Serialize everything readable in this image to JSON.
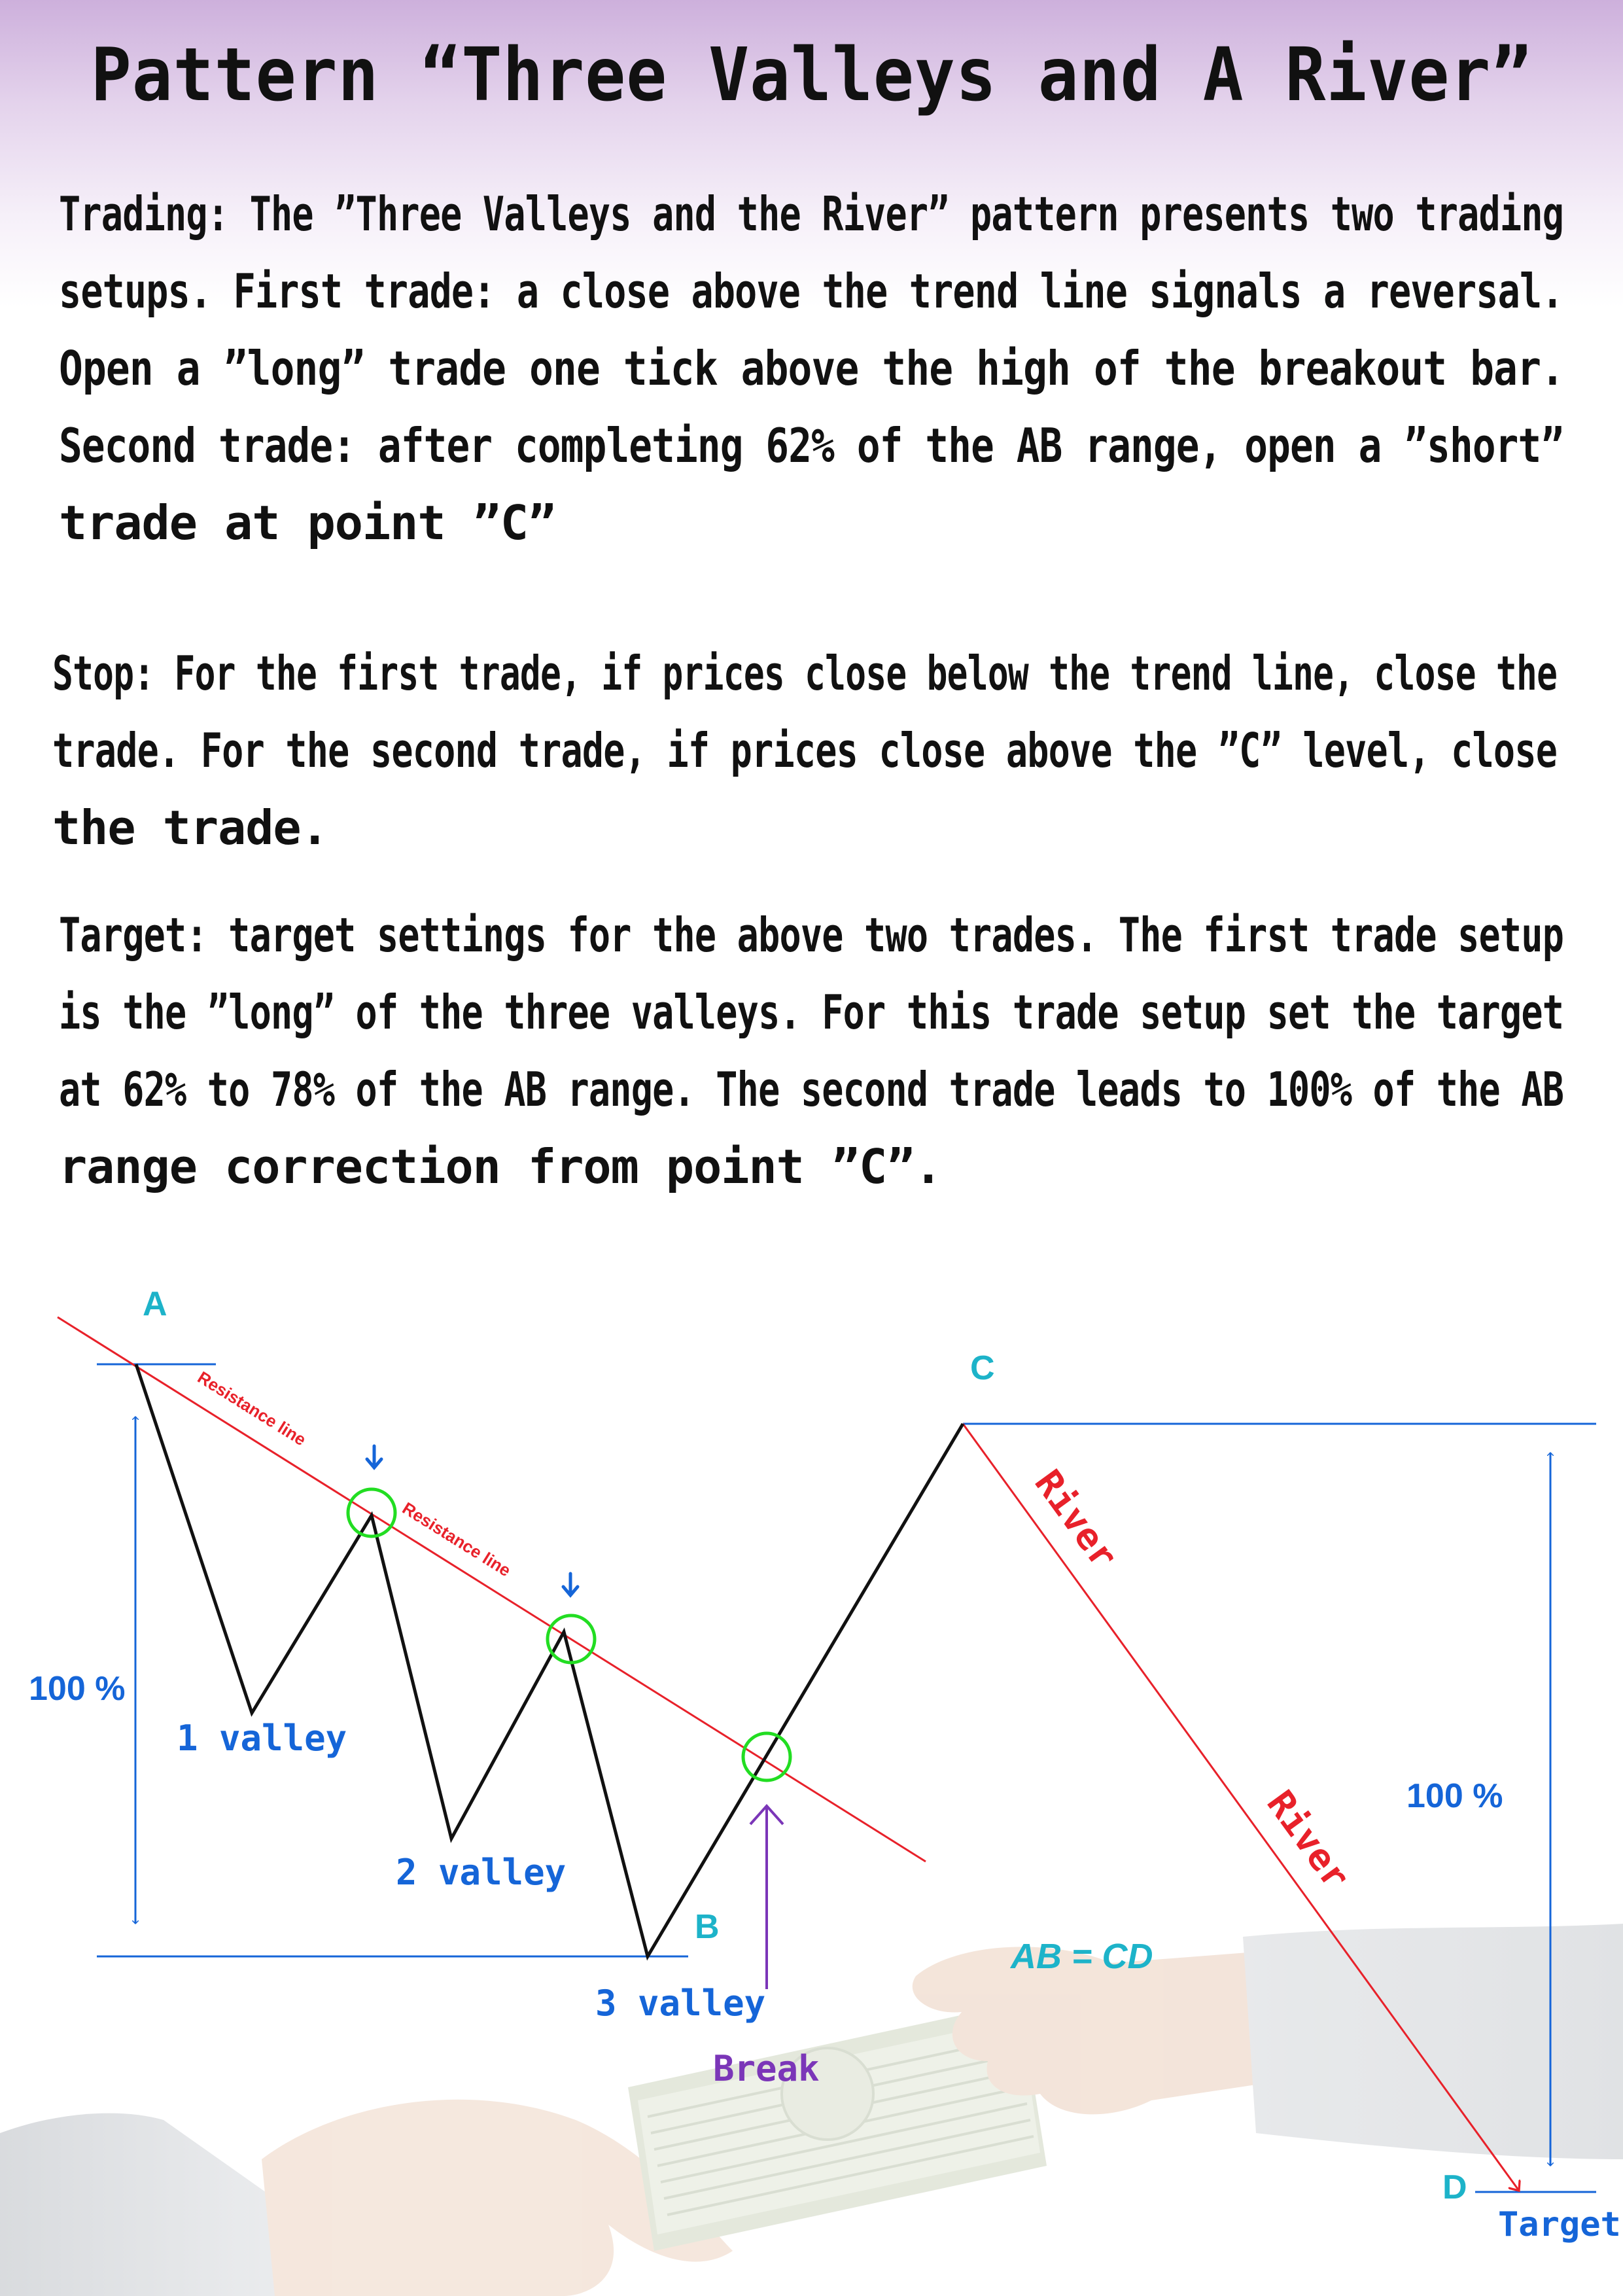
{
  "title": "Pattern “Three Valleys and A River”",
  "trading": [
    "Trading: The ”Three Valleys and the River” pattern presents two trading",
    " setups. First trade: a close above the trend line signals a reversal.",
    "Open a ”long” trade one tick above the high of the breakout bar.",
    "Second trade: after completing 62% of the AB range, open a ”short”",
    " trade at point ”C”"
  ],
  "stop": [
    "Stop: For the first trade, if prices close below the trend line, close the",
    " trade. For the second trade, if prices close above the ”C” level, close",
    "the trade."
  ],
  "target": [
    "Target: target settings for the above two trades. The first trade setup",
    "is the ”long” of the three valleys. For this trade setup set the target",
    "at 62% to 78% of the AB range. The second trade leads to 100% of the AB",
    "range correction from point ”C”."
  ],
  "diagram": {
    "point_a": "A",
    "point_b": "B",
    "point_c": "C",
    "point_d": "D",
    "resistance_1": "Resistance line",
    "resistance_2": "Resistance line",
    "valley_1": "1 valley",
    "valley_2": "2 valley",
    "valley_3": "3 valley",
    "pct_left": "100 %",
    "pct_right": "100 %",
    "river_1": "River",
    "river_2": "River",
    "break": "Break",
    "ab_cd": "AB = CD",
    "target": "Target"
  },
  "colors": {
    "price_line": "#111111",
    "resistance": "#e8212a",
    "measure": "#1565d8",
    "point_label": "#1db3c9",
    "circle": "#22dd22",
    "break_arrow": "#7b36b8"
  }
}
